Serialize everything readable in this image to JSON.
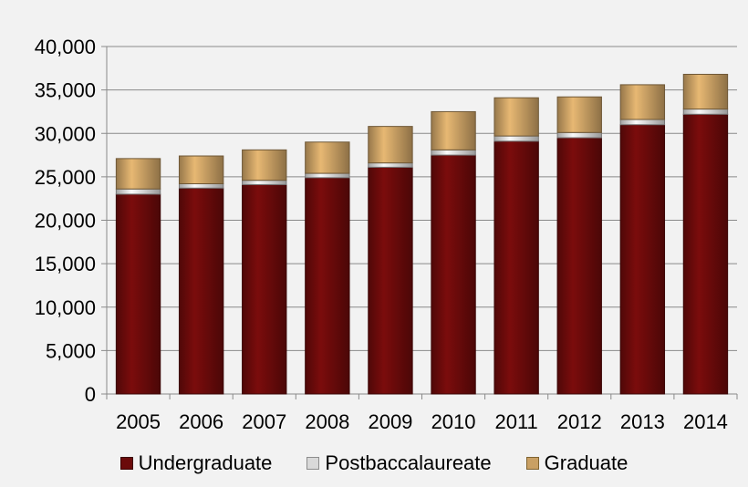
{
  "chart_data": {
    "type": "bar",
    "stacked": true,
    "categories": [
      "2005",
      "2006",
      "2007",
      "2008",
      "2009",
      "2010",
      "2011",
      "2012",
      "2013",
      "2014"
    ],
    "series": [
      {
        "name": "Undergraduate",
        "color": "#6b0a0a",
        "values": [
          23000,
          23700,
          24100,
          24900,
          26100,
          27500,
          29100,
          29500,
          31000,
          32200
        ]
      },
      {
        "name": "Postbaccalaureate",
        "color": "#d9d9d9",
        "values": [
          600,
          500,
          500,
          500,
          500,
          600,
          600,
          600,
          600,
          600
        ]
      },
      {
        "name": "Graduate",
        "color": "#c9a064",
        "values": [
          3500,
          3200,
          3500,
          3600,
          4200,
          4400,
          4400,
          4100,
          4000,
          4000
        ]
      }
    ],
    "yticks": [
      "0",
      "5,000",
      "10,000",
      "15,000",
      "20,000",
      "25,000",
      "30,000",
      "35,000",
      "40,000"
    ],
    "ylim": [
      0,
      40000
    ],
    "grid": true,
    "legend_position": "bottom"
  }
}
